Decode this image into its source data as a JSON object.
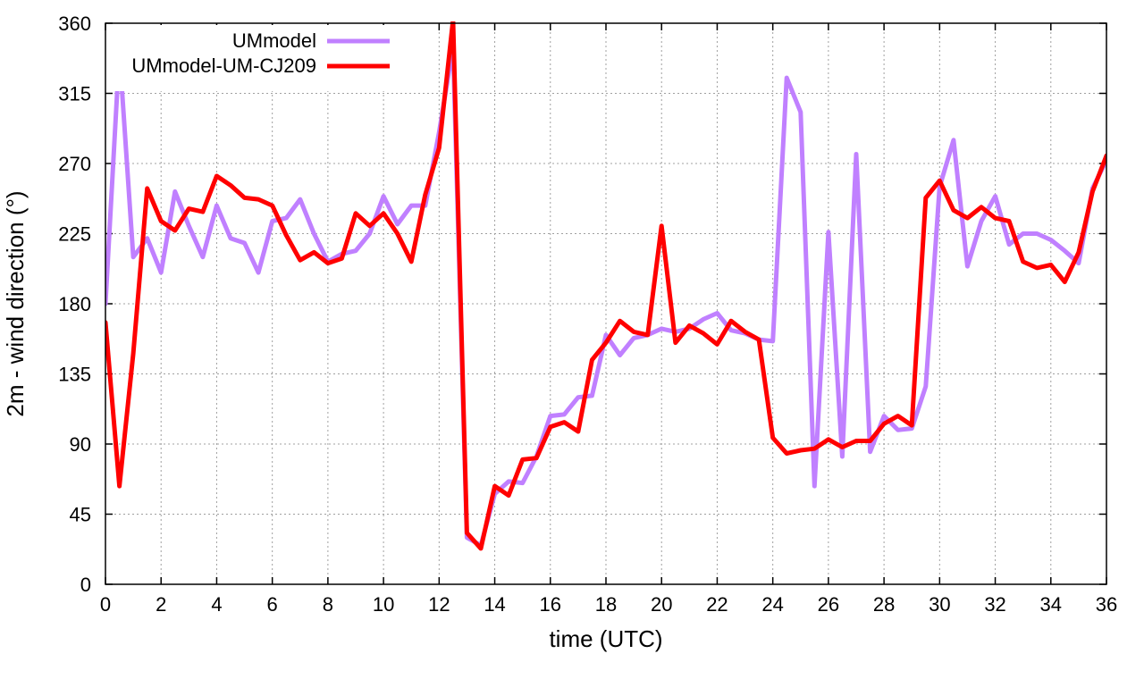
{
  "chart_data": {
    "type": "line",
    "xlabel": "time (UTC)",
    "ylabel": "2m - wind direction (°)",
    "xlim": [
      0,
      36
    ],
    "ylim": [
      0,
      360
    ],
    "xticks": [
      0,
      2,
      4,
      6,
      8,
      10,
      12,
      14,
      16,
      18,
      20,
      22,
      24,
      26,
      28,
      30,
      32,
      34,
      36
    ],
    "yticks": [
      0,
      45,
      90,
      135,
      180,
      225,
      270,
      315,
      360
    ],
    "grid": true,
    "legend_position": "top-left",
    "x": [
      0,
      0.5,
      1,
      1.5,
      2,
      2.5,
      3,
      3.5,
      4,
      4.5,
      5,
      5.5,
      6,
      6.5,
      7,
      7.5,
      8,
      8.5,
      9,
      9.5,
      10,
      10.5,
      11,
      11.5,
      12,
      12.5,
      13,
      13.5,
      14,
      14.5,
      15,
      15.5,
      16,
      16.5,
      17,
      17.5,
      18,
      18.5,
      19,
      19.5,
      20,
      20.5,
      21,
      21.5,
      22,
      22.5,
      23,
      23.5,
      24,
      24.5,
      25,
      25.5,
      26,
      26.5,
      27,
      27.5,
      28,
      28.5,
      29,
      29.5,
      30,
      30.5,
      31,
      31.5,
      32,
      32.5,
      33,
      33.5,
      34,
      34.5,
      35,
      35.5,
      36
    ],
    "series": [
      {
        "name": "UMmodel",
        "color": "#c080ff",
        "values": [
          180,
          342,
          210,
          222,
          200,
          252,
          230,
          210,
          243,
          222,
          219,
          200,
          233,
          235,
          247,
          225,
          207,
          212,
          214,
          225,
          249,
          231,
          243,
          243,
          290,
          345,
          30,
          25,
          58,
          66,
          65,
          82,
          108,
          109,
          120,
          121,
          160,
          147,
          158,
          160,
          164,
          162,
          164,
          170,
          174,
          163,
          161,
          157,
          156,
          325,
          303,
          63,
          226,
          82,
          276,
          85,
          108,
          99,
          100,
          127,
          255,
          285,
          204,
          233,
          249,
          218,
          225,
          225,
          221,
          214,
          206,
          254,
          272
        ],
        "stroke_width": 5
      },
      {
        "name": "UMmodel-UM-CJ209",
        "color": "#ff0000",
        "values": [
          168,
          63,
          148,
          254,
          233,
          227,
          241,
          239,
          262,
          256,
          248,
          247,
          243,
          224,
          208,
          213,
          206,
          209,
          238,
          230,
          238,
          225,
          207,
          250,
          280,
          362,
          33,
          23,
          63,
          57,
          80,
          81,
          101,
          104,
          98,
          144,
          155,
          169,
          162,
          160,
          230,
          155,
          166,
          161,
          154,
          169,
          162,
          157,
          94,
          84,
          86,
          87,
          93,
          88,
          92,
          92,
          103,
          108,
          102,
          248,
          259,
          240,
          235,
          242,
          235,
          233,
          207,
          203,
          205,
          194,
          213,
          252,
          275
        ],
        "stroke_width": 5
      }
    ]
  }
}
